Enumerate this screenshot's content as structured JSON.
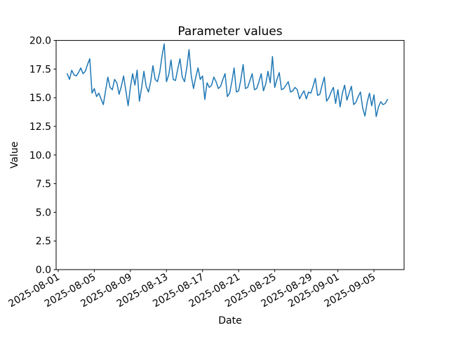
{
  "chart_data": {
    "type": "line",
    "title": "Parameter values",
    "xlabel": "Date",
    "ylabel": "Value",
    "line_color": "#1f77b4",
    "axis_color": "#000000",
    "background_color": "#ffffff",
    "legend": "none",
    "grid": "off",
    "ylim": [
      0.0,
      20.0
    ],
    "xlim_days": [
      -0.23,
      38.34
    ],
    "x_unit": "days since 2025-08-01 00:00",
    "x_tick_rotation_deg": 30,
    "y_ticks": [
      {
        "value": 0.0,
        "label": "0.0"
      },
      {
        "value": 2.5,
        "label": "2.5"
      },
      {
        "value": 5.0,
        "label": "5.0"
      },
      {
        "value": 7.5,
        "label": "7.5"
      },
      {
        "value": 10.0,
        "label": "10.0"
      },
      {
        "value": 12.5,
        "label": "12.5"
      },
      {
        "value": 15.0,
        "label": "15.0"
      },
      {
        "value": 17.5,
        "label": "17.5"
      },
      {
        "value": 20.0,
        "label": "20.0"
      }
    ],
    "x_ticks": [
      {
        "day": 0,
        "label": "2025-08-01"
      },
      {
        "day": 4,
        "label": "2025-08-05"
      },
      {
        "day": 8,
        "label": "2025-08-09"
      },
      {
        "day": 12,
        "label": "2025-08-13"
      },
      {
        "day": 16,
        "label": "2025-08-17"
      },
      {
        "day": 20,
        "label": "2025-08-21"
      },
      {
        "day": 24,
        "label": "2025-08-25"
      },
      {
        "day": 28,
        "label": "2025-08-29"
      },
      {
        "day": 31,
        "label": "2025-09-01"
      },
      {
        "day": 35,
        "label": "2025-09-05"
      }
    ],
    "series": [
      {
        "name": "Parameter",
        "points": [
          [
            1.0,
            17.1
          ],
          [
            1.25,
            16.6
          ],
          [
            1.5,
            17.4
          ],
          [
            1.75,
            17.0
          ],
          [
            2.0,
            16.9
          ],
          [
            2.25,
            17.2
          ],
          [
            2.5,
            17.6
          ],
          [
            2.75,
            17.1
          ],
          [
            3.0,
            17.3
          ],
          [
            3.25,
            17.9
          ],
          [
            3.5,
            18.4
          ],
          [
            3.75,
            15.4
          ],
          [
            4.0,
            15.8
          ],
          [
            4.25,
            15.1
          ],
          [
            4.5,
            15.4
          ],
          [
            4.75,
            14.9
          ],
          [
            5.0,
            14.4
          ],
          [
            5.25,
            15.6
          ],
          [
            5.5,
            16.8
          ],
          [
            5.75,
            15.9
          ],
          [
            6.0,
            15.7
          ],
          [
            6.25,
            16.6
          ],
          [
            6.5,
            16.3
          ],
          [
            6.75,
            15.3
          ],
          [
            7.0,
            16.0
          ],
          [
            7.25,
            16.9
          ],
          [
            7.5,
            15.6
          ],
          [
            7.75,
            14.3
          ],
          [
            8.0,
            15.9
          ],
          [
            8.25,
            17.1
          ],
          [
            8.5,
            16.1
          ],
          [
            8.75,
            17.4
          ],
          [
            9.0,
            14.7
          ],
          [
            9.25,
            15.9
          ],
          [
            9.5,
            17.3
          ],
          [
            9.75,
            16.0
          ],
          [
            10.0,
            15.5
          ],
          [
            10.25,
            16.4
          ],
          [
            10.5,
            17.8
          ],
          [
            10.75,
            16.6
          ],
          [
            11.0,
            16.4
          ],
          [
            11.25,
            17.2
          ],
          [
            11.5,
            18.6
          ],
          [
            11.75,
            19.7
          ],
          [
            12.0,
            16.4
          ],
          [
            12.25,
            17.0
          ],
          [
            12.5,
            18.3
          ],
          [
            12.75,
            16.6
          ],
          [
            13.0,
            16.5
          ],
          [
            13.25,
            17.5
          ],
          [
            13.5,
            18.4
          ],
          [
            13.75,
            16.8
          ],
          [
            14.0,
            16.4
          ],
          [
            14.25,
            17.6
          ],
          [
            14.5,
            19.2
          ],
          [
            14.75,
            16.9
          ],
          [
            15.0,
            15.8
          ],
          [
            15.25,
            16.8
          ],
          [
            15.5,
            17.6
          ],
          [
            15.75,
            16.6
          ],
          [
            16.0,
            16.9
          ],
          [
            16.25,
            14.85
          ],
          [
            16.5,
            16.3
          ],
          [
            16.75,
            15.9
          ],
          [
            17.0,
            16.1
          ],
          [
            17.25,
            16.8
          ],
          [
            17.5,
            16.4
          ],
          [
            17.75,
            15.8
          ],
          [
            18.0,
            16.0
          ],
          [
            18.25,
            16.6
          ],
          [
            18.5,
            17.1
          ],
          [
            18.75,
            15.1
          ],
          [
            19.0,
            15.4
          ],
          [
            19.25,
            16.4
          ],
          [
            19.5,
            17.6
          ],
          [
            19.75,
            15.5
          ],
          [
            20.0,
            15.6
          ],
          [
            20.25,
            16.6
          ],
          [
            20.5,
            17.9
          ],
          [
            20.75,
            15.8
          ],
          [
            21.0,
            15.9
          ],
          [
            21.25,
            16.5
          ],
          [
            21.5,
            17.1
          ],
          [
            21.75,
            15.7
          ],
          [
            22.0,
            15.8
          ],
          [
            22.25,
            16.4
          ],
          [
            22.5,
            17.1
          ],
          [
            22.75,
            15.6
          ],
          [
            23.0,
            16.2
          ],
          [
            23.25,
            17.3
          ],
          [
            23.5,
            16.3
          ],
          [
            23.75,
            18.6
          ],
          [
            24.0,
            15.9
          ],
          [
            24.25,
            16.6
          ],
          [
            24.5,
            17.2
          ],
          [
            24.75,
            15.7
          ],
          [
            25.0,
            15.8
          ],
          [
            25.25,
            16.1
          ],
          [
            25.5,
            16.4
          ],
          [
            25.75,
            15.5
          ],
          [
            26.0,
            15.6
          ],
          [
            26.25,
            15.9
          ],
          [
            26.5,
            15.7
          ],
          [
            26.75,
            14.9
          ],
          [
            27.0,
            15.3
          ],
          [
            27.25,
            15.6
          ],
          [
            27.5,
            14.9
          ],
          [
            27.75,
            15.5
          ],
          [
            28.0,
            15.4
          ],
          [
            28.25,
            16.0
          ],
          [
            28.5,
            16.7
          ],
          [
            28.75,
            15.2
          ],
          [
            29.0,
            15.3
          ],
          [
            29.25,
            16.1
          ],
          [
            29.5,
            16.8
          ],
          [
            29.75,
            14.7
          ],
          [
            30.0,
            15.0
          ],
          [
            30.25,
            15.5
          ],
          [
            30.5,
            15.9
          ],
          [
            30.75,
            14.5
          ],
          [
            31.0,
            15.7
          ],
          [
            31.25,
            14.2
          ],
          [
            31.5,
            15.4
          ],
          [
            31.75,
            16.1
          ],
          [
            32.0,
            14.8
          ],
          [
            32.25,
            15.4
          ],
          [
            32.5,
            16.0
          ],
          [
            32.75,
            14.4
          ],
          [
            33.0,
            14.6
          ],
          [
            33.25,
            15.1
          ],
          [
            33.5,
            15.5
          ],
          [
            33.75,
            14.1
          ],
          [
            34.0,
            13.4
          ],
          [
            34.25,
            14.6
          ],
          [
            34.5,
            15.4
          ],
          [
            34.75,
            14.3
          ],
          [
            35.0,
            15.25
          ],
          [
            35.25,
            13.35
          ],
          [
            35.5,
            14.2
          ],
          [
            35.75,
            14.65
          ],
          [
            36.0,
            14.4
          ],
          [
            36.25,
            14.5
          ],
          [
            36.5,
            14.85
          ]
        ]
      }
    ]
  }
}
